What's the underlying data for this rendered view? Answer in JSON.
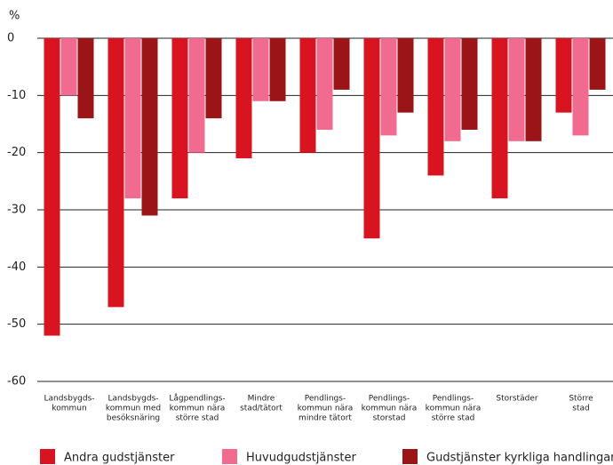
{
  "chart_data": {
    "type": "bar",
    "y_label": "%",
    "categories": [
      [
        "Landsbygds-",
        "kommun"
      ],
      [
        "Landsbygds-",
        "kommun med",
        "besöksnäring"
      ],
      [
        "Lågpendlings-",
        "kommun nära",
        "större stad"
      ],
      [
        "Mindre",
        "stad/tätort"
      ],
      [
        "Pendlings-",
        "kommun nära",
        "mindre tätort"
      ],
      [
        "Pendlings-",
        "kommun nära",
        "storstad"
      ],
      [
        "Pendlings-",
        "kommun nära",
        "större stad"
      ],
      [
        "Storstäder"
      ],
      [
        "Större",
        "stad"
      ]
    ],
    "series": [
      {
        "name": "Andra gudstjänster",
        "color": "#d7141f",
        "values": [
          -52,
          -47,
          -28,
          -21,
          -20,
          -35,
          -24,
          -28,
          -13
        ]
      },
      {
        "name": "Huvudgudstjänster",
        "color": "#f06b8f",
        "values": [
          -10,
          -28,
          -20,
          -11,
          -16,
          -17,
          -18,
          -18,
          -17
        ]
      },
      {
        "name": "Gudstjänster kyrkliga handlingar",
        "color": "#9b1418",
        "values": [
          -14,
          -31,
          -14,
          -11,
          -9,
          -13,
          -16,
          -18,
          -9
        ]
      }
    ],
    "ylim": [
      -60,
      0
    ],
    "yticks": [
      0,
      -10,
      -20,
      -30,
      -40,
      -50,
      -60
    ],
    "grid": true,
    "legend": "bottom"
  }
}
